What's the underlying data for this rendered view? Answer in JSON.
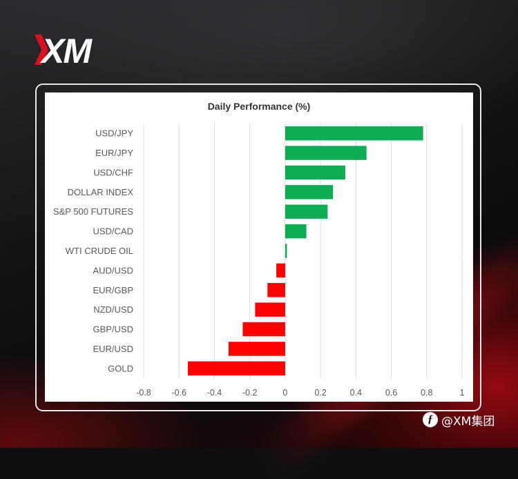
{
  "brand": {
    "logo_text": "XM",
    "logo_mark_color": "#d9101e",
    "logo_text_color": "#ffffff"
  },
  "watermark": {
    "text": "@XM集团",
    "icon": "weibo-icon"
  },
  "colors": {
    "positive": "#0ead55",
    "negative": "#ff0000",
    "gridline": "#d9d9d9",
    "axis_text": "#595959"
  },
  "chart_data": {
    "type": "bar",
    "orientation": "horizontal",
    "title": "Daily Performance (%)",
    "categories": [
      "USD/JPY",
      "EUR/JPY",
      "USD/CHF",
      "DOLLAR INDEX",
      "S&P 500 FUTURES",
      "USD/CAD",
      "WTI CRUDE OIL",
      "AUD/USD",
      "EUR/GBP",
      "NZD/USD",
      "GBP/USD",
      "EUR/USD",
      "GOLD"
    ],
    "values": [
      0.78,
      0.46,
      0.34,
      0.27,
      0.24,
      0.12,
      0.01,
      -0.05,
      -0.1,
      -0.17,
      -0.24,
      -0.32,
      -0.55
    ],
    "xlim": [
      -0.8,
      1
    ],
    "xticks": [
      "-0.8",
      "-0.6",
      "-0.4",
      "-0.2",
      "0",
      "0.2",
      "0.4",
      "0.6",
      "0.8",
      "1"
    ],
    "xtick_values": [
      -0.8,
      -0.6,
      -0.4,
      -0.2,
      0,
      0.2,
      0.4,
      0.6,
      0.8,
      1
    ],
    "grid": true,
    "legend": "none"
  }
}
